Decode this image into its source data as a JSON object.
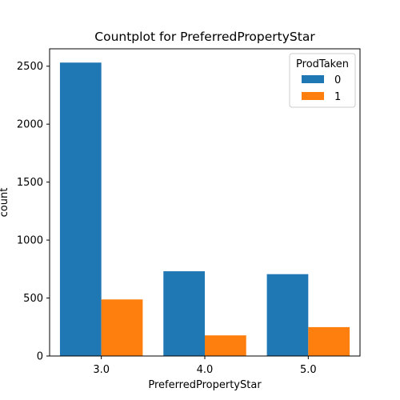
{
  "chart_data": {
    "type": "bar",
    "title": "Countplot for PreferredPropertyStar",
    "xlabel": "PreferredPropertyStar",
    "ylabel": "count",
    "categories": [
      "3.0",
      "4.0",
      "5.0"
    ],
    "series": [
      {
        "name": "0",
        "color": "#1f77b4",
        "values": [
          2531,
          731,
          706
        ]
      },
      {
        "name": "1",
        "color": "#ff7f0e",
        "values": [
          488,
          178,
          249
        ]
      }
    ],
    "ylim": [
      0,
      2650
    ],
    "yticks": [
      0,
      500,
      1000,
      1500,
      2000,
      2500
    ],
    "ytick_labels": [
      "0",
      "500",
      "1000",
      "1500",
      "2000",
      "2500"
    ],
    "grid": false,
    "legend": {
      "title": "ProdTaken",
      "placement": "top-right"
    }
  }
}
